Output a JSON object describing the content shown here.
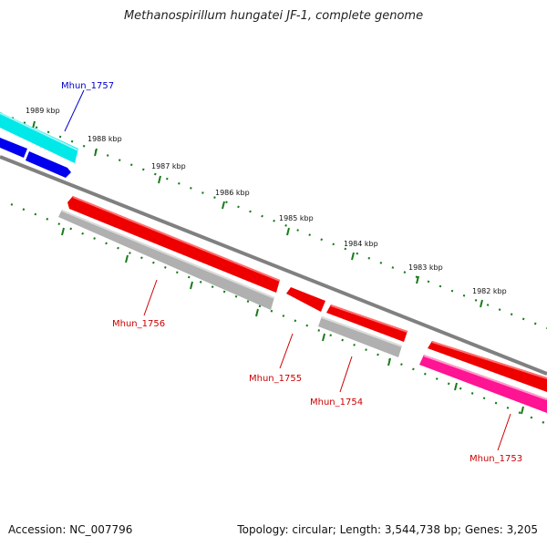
{
  "title": "Methanospirillum hungatei JF-1, complete genome",
  "footer": {
    "accession": "Accession: NC_007796",
    "summary": "Topology: circular; Length: 3,544,738 bp; Genes: 3,205"
  },
  "scale_labels": [
    "1989 kbp",
    "1988 kbp",
    "1987 kbp",
    "1986 kbp",
    "1985 kbp",
    "1984 kbp",
    "1983 kbp",
    "1982 kbp"
  ],
  "gene_labels": [
    "Mhun_1757",
    "Mhun_1756",
    "Mhun_1755",
    "Mhun_1754",
    "Mhun_1753"
  ],
  "colors": {
    "background": "#ffffff",
    "backbone": "#808080",
    "tick": "#1a7a1a",
    "forward_gene": "#0000ee",
    "forward_rna": "#00e8e8",
    "reverse_gene": "#ee0000",
    "reverse_pseudo": "#b0b0b0",
    "magenta_feature": "#ff1493",
    "label_blue": "#0000cc",
    "label_red": "#cc0000"
  }
}
